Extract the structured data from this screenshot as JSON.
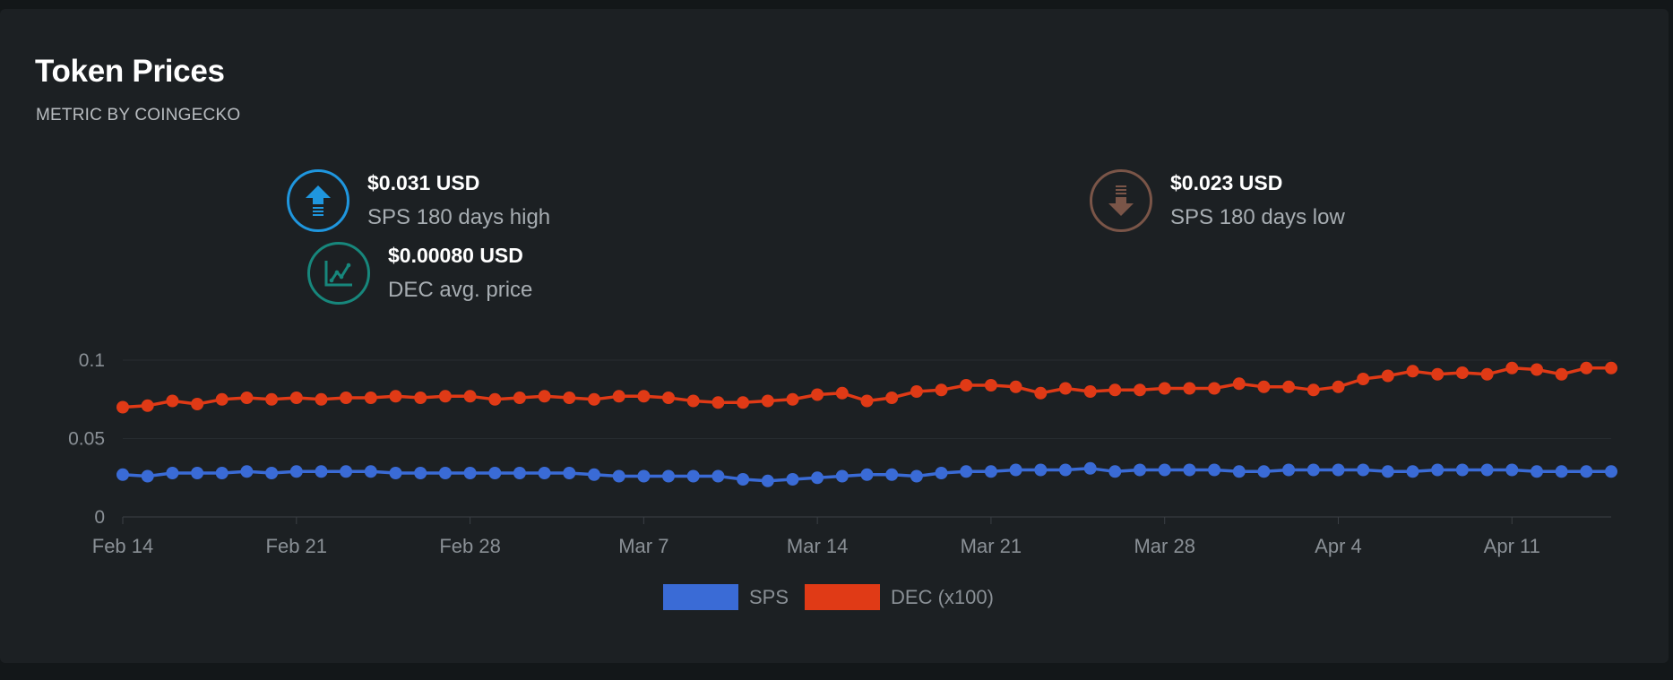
{
  "card": {
    "title": "Token Prices",
    "subtitle": "METRIC BY COINGECKO"
  },
  "stats": {
    "sps_high": {
      "value": "$0.031 USD",
      "label": "SPS 180 days high",
      "icon": "arrow-up-icon",
      "color": "#1f96de"
    },
    "dec_avg": {
      "value": "$0.00080 USD",
      "label": "DEC avg. price",
      "icon": "line-chart-icon",
      "color": "#17877c"
    },
    "sps_low": {
      "value": "$0.023 USD",
      "label": "SPS 180 days low",
      "icon": "arrow-down-icon",
      "color": "#7a5548"
    }
  },
  "legend": {
    "sps": {
      "label": "SPS",
      "color": "#3a6bd6"
    },
    "dec": {
      "label": "DEC (x100)",
      "color": "#e03a16"
    }
  },
  "chart_data": {
    "type": "line",
    "x_start": "Feb 14",
    "x_end": "Apr 13",
    "x_ticks": [
      "Feb 14",
      "Feb 21",
      "Feb 28",
      "Mar 7",
      "Mar 14",
      "Mar 21",
      "Mar 28",
      "Apr 4",
      "Apr 11"
    ],
    "x_tick_day_offsets": [
      0,
      7,
      14,
      21,
      28,
      35,
      42,
      49,
      56
    ],
    "y_ticks": [
      "0",
      "0.05",
      "0.1"
    ],
    "y_tick_values": [
      0,
      0.05,
      0.1
    ],
    "ylim": [
      0,
      0.1
    ],
    "grid": true,
    "legend_position": "bottom-center",
    "series": [
      {
        "name": "SPS",
        "color": "#3a6bd6",
        "values": [
          0.027,
          0.026,
          0.028,
          0.028,
          0.028,
          0.029,
          0.028,
          0.029,
          0.029,
          0.029,
          0.029,
          0.028,
          0.028,
          0.028,
          0.028,
          0.028,
          0.028,
          0.028,
          0.028,
          0.027,
          0.026,
          0.026,
          0.026,
          0.026,
          0.026,
          0.024,
          0.023,
          0.024,
          0.025,
          0.026,
          0.027,
          0.027,
          0.026,
          0.028,
          0.029,
          0.029,
          0.03,
          0.03,
          0.03,
          0.031,
          0.029,
          0.03,
          0.03,
          0.03,
          0.03,
          0.029,
          0.029,
          0.03,
          0.03,
          0.03,
          0.03,
          0.029,
          0.029,
          0.03,
          0.03,
          0.03,
          0.03,
          0.029,
          0.029,
          0.029,
          0.029
        ]
      },
      {
        "name": "DEC (x100)",
        "color": "#e03a16",
        "values": [
          0.07,
          0.071,
          0.074,
          0.072,
          0.075,
          0.076,
          0.075,
          0.076,
          0.075,
          0.076,
          0.076,
          0.077,
          0.076,
          0.077,
          0.077,
          0.075,
          0.076,
          0.077,
          0.076,
          0.075,
          0.077,
          0.077,
          0.076,
          0.074,
          0.073,
          0.073,
          0.074,
          0.075,
          0.078,
          0.079,
          0.074,
          0.076,
          0.08,
          0.081,
          0.084,
          0.084,
          0.083,
          0.079,
          0.082,
          0.08,
          0.081,
          0.081,
          0.082,
          0.082,
          0.082,
          0.085,
          0.083,
          0.083,
          0.081,
          0.083,
          0.088,
          0.09,
          0.093,
          0.091,
          0.092,
          0.091,
          0.095,
          0.094,
          0.091,
          0.095,
          0.095
        ]
      }
    ]
  }
}
